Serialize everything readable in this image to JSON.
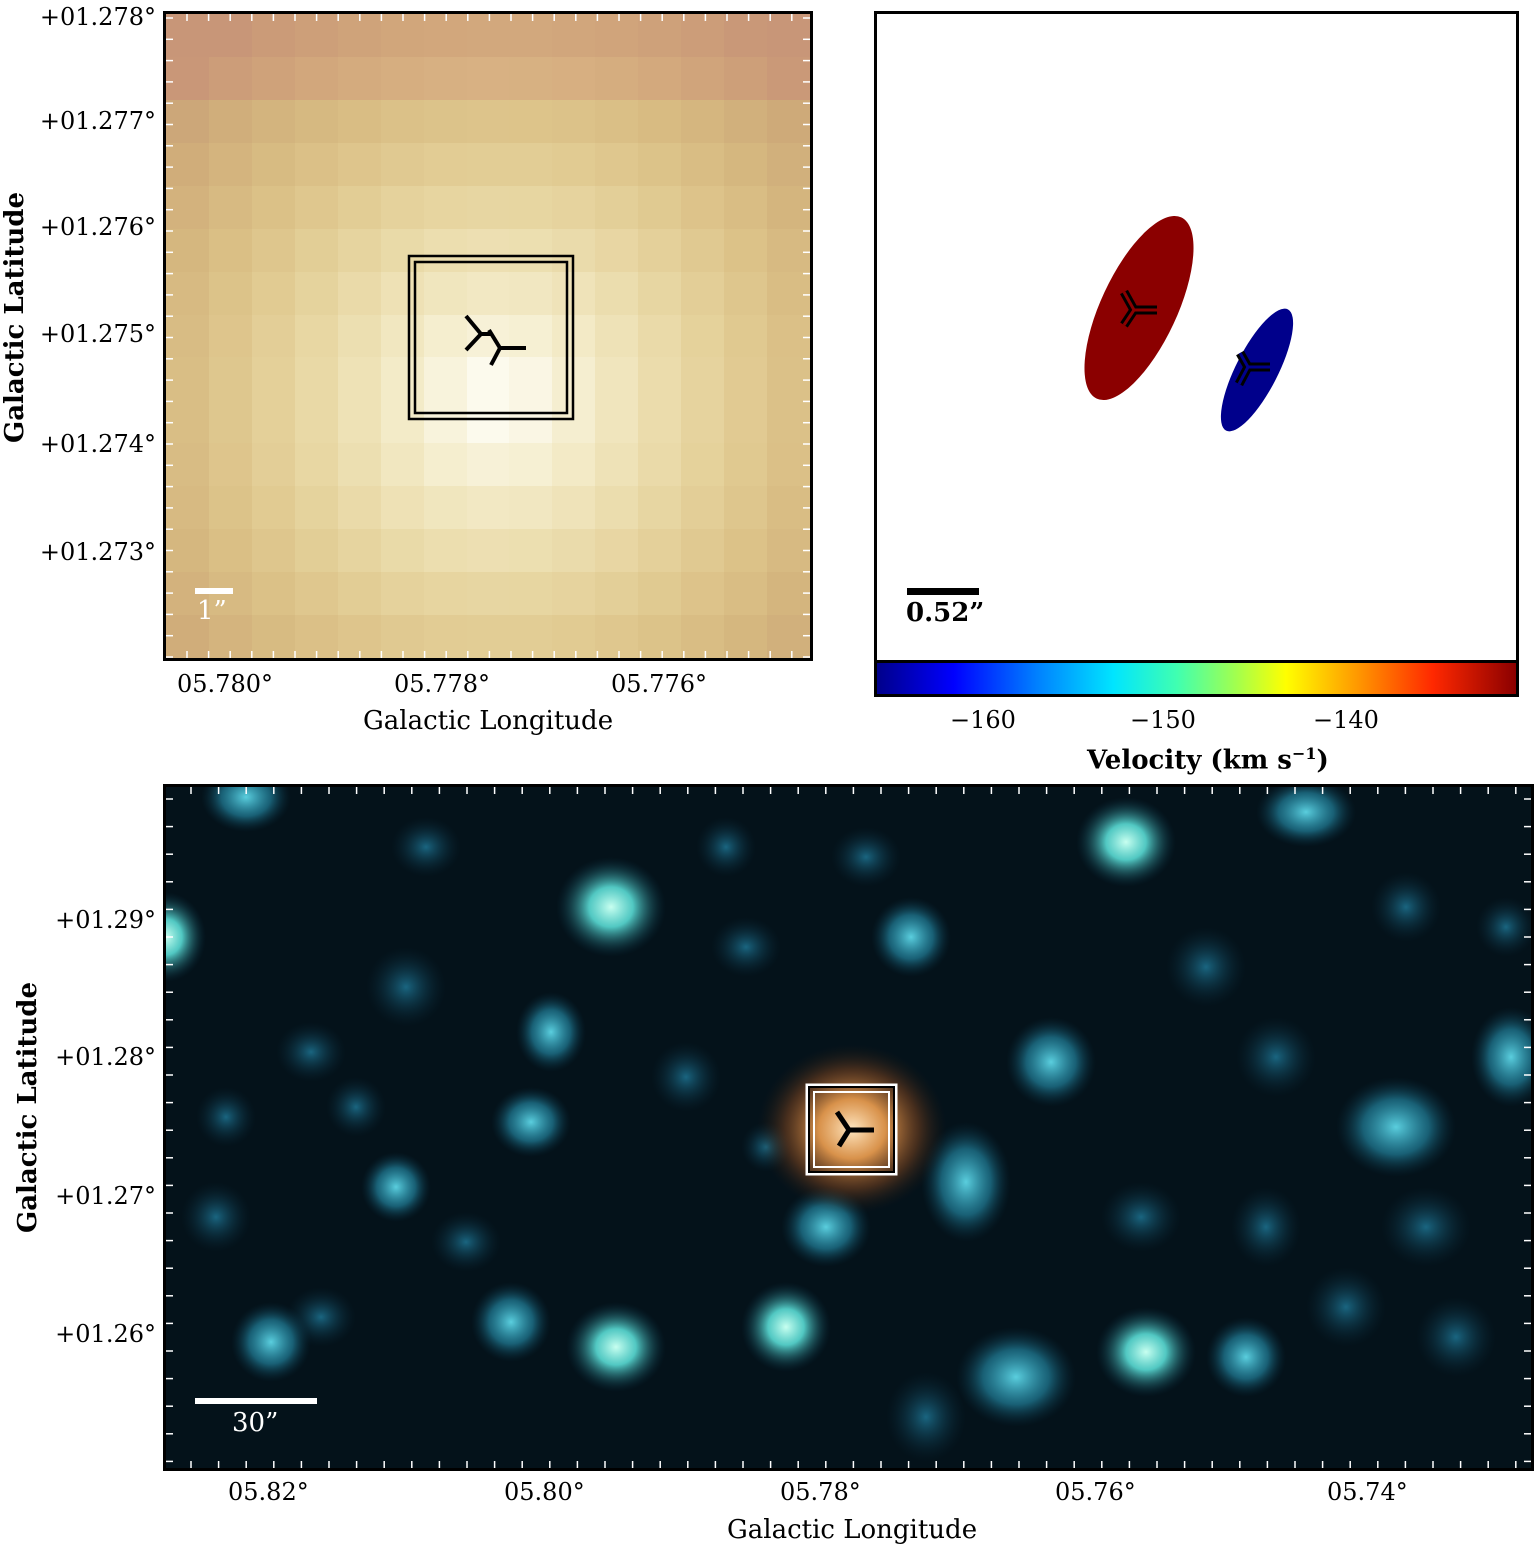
{
  "top_left": {
    "xlabel": "Galactic Longitude",
    "ylabel": "Galactic Latitude",
    "x_ticks": [
      "05.780°",
      "05.778°",
      "05.776°"
    ],
    "y_ticks": [
      "+01.278°",
      "+01.277°",
      "+01.276°",
      "+01.275°",
      "+01.274°",
      "+01.273°"
    ],
    "scale_label": "1”"
  },
  "top_right": {
    "scale_label": "0.52”",
    "colorbar_label": "Velocity (km s",
    "colorbar_sup": "−1",
    "colorbar_close": ")",
    "colorbar_ticks": [
      "−160",
      "−150",
      "−140"
    ],
    "colorbar_range": [
      -166,
      -131
    ],
    "ellipse_colors": {
      "red": "#8b0000",
      "blue": "#00008b"
    }
  },
  "bottom": {
    "xlabel": "Galactic Longitude",
    "ylabel": "Galactic Latitude",
    "x_ticks": [
      "05.82°",
      "05.80°",
      "05.78°",
      "05.76°",
      "05.74°"
    ],
    "y_ticks": [
      "+01.29°",
      "+01.28°",
      "+01.27°",
      "+01.26°"
    ],
    "scale_label": "30”"
  }
}
